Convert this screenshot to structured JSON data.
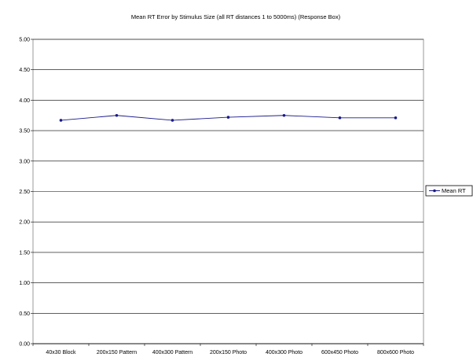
{
  "chart_data": {
    "type": "line",
    "title": "Mean RT Error by Stimulus Size (all RT distances 1 to 5000ms) (Response Box)",
    "xlabel": "",
    "ylabel": "",
    "categories": [
      "40x30 Block",
      "200x150 Pattern",
      "400x300 Pattern",
      "200x150 Photo",
      "400x300 Photo",
      "600x450 Photo",
      "800x600 Photo"
    ],
    "series": [
      {
        "name": "Mean RT",
        "values": [
          3.67,
          3.75,
          3.67,
          3.72,
          3.75,
          3.71,
          3.71
        ]
      }
    ],
    "ylim": [
      0,
      5
    ],
    "yticks": [
      "0.00",
      "0.50",
      "1.00",
      "1.50",
      "2.00",
      "2.50",
      "3.00",
      "3.50",
      "4.00",
      "4.50",
      "5.00"
    ],
    "grid": true,
    "legend_position": "right",
    "colors": {
      "series": "#1a1a8c",
      "grid": "#000000",
      "plot_border": "#808080"
    }
  }
}
